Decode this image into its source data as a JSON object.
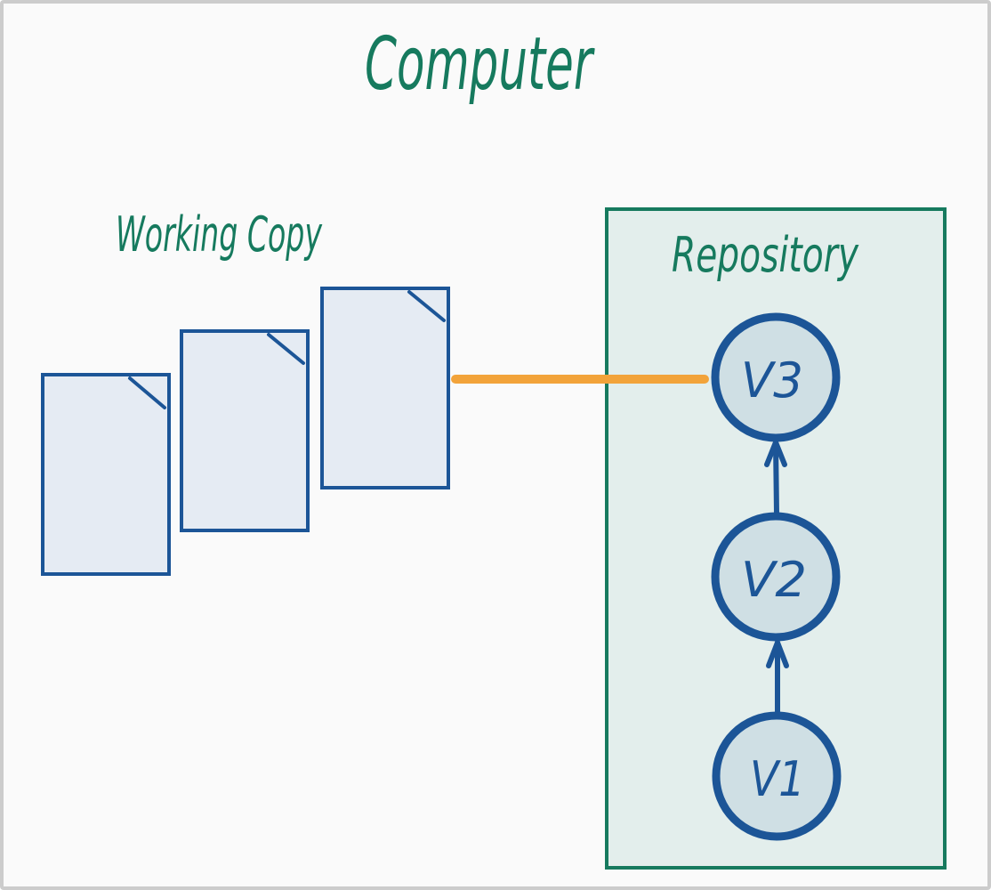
{
  "title": "Computer",
  "working_copy": {
    "label": "Working Copy",
    "file_count": 3
  },
  "repository": {
    "label": "Repository",
    "versions": [
      "V1",
      "V2",
      "V3"
    ],
    "current_version": "V3"
  },
  "colors": {
    "background": "#fafafa",
    "frame_border": "#cccccc",
    "label_green": "#167a5e",
    "file_stroke": "#1c5597",
    "file_fill": "#e5ebf3",
    "repo_stroke": "#167a5e",
    "repo_fill": "#e3eeec",
    "node_stroke": "#1c5597",
    "node_fill": "#cfdfe4",
    "link_orange": "#f2a33a"
  }
}
